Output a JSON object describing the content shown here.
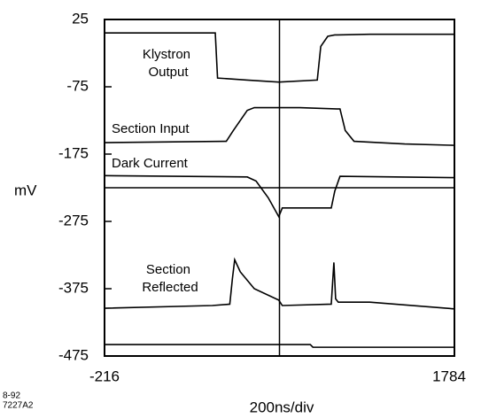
{
  "chart_data": {
    "type": "line",
    "ylabel": "mV",
    "xlabel": "200ns/div",
    "annotations": [
      "8-92",
      "7227A2"
    ],
    "xlim": [
      -216,
      1784
    ],
    "xticks": [
      -216,
      1784
    ],
    "ylim": [
      -475,
      25
    ],
    "yticks": [
      25,
      -75,
      -175,
      -275,
      -375,
      -475
    ],
    "crosshair": {
      "x": 784,
      "y": -225
    },
    "series": [
      {
        "name": "Klystron Output",
        "color": "#000000",
        "x": [
          -216,
          417,
          430,
          600,
          780,
          1000,
          1020,
          1060,
          1100,
          1300,
          1784
        ],
        "values": [
          5,
          5,
          -62,
          -65,
          -68,
          -65,
          -15,
          0,
          2,
          3,
          3
        ]
      },
      {
        "name": "Section Input",
        "color": "#000000",
        "x": [
          -216,
          480,
          520,
          600,
          640,
          900,
          1130,
          1160,
          1210,
          1500,
          1784
        ],
        "values": [
          -158,
          -156,
          -140,
          -110,
          -106,
          -106,
          -108,
          -140,
          -156,
          -160,
          -162
        ]
      },
      {
        "name": "Dark Current",
        "color": "#000000",
        "x": [
          -216,
          600,
          650,
          720,
          780,
          800,
          1080,
          1100,
          1130,
          1784
        ],
        "values": [
          -207,
          -209,
          -215,
          -240,
          -268,
          -255,
          -255,
          -230,
          -208,
          -210
        ]
      },
      {
        "name": "Section Reflected",
        "color": "#000000",
        "x": [
          -216,
          400,
          500,
          515,
          528,
          560,
          640,
          780,
          800,
          1080,
          1095,
          1105,
          1120,
          1300,
          1784
        ],
        "values": [
          -404,
          -400,
          -398,
          -360,
          -332,
          -350,
          -375,
          -392,
          -400,
          -398,
          -336,
          -390,
          -395,
          -395,
          -405
        ]
      },
      {
        "color": "#000000",
        "x": [
          -216,
          960,
          975,
          1784
        ],
        "values": [
          -458,
          -458,
          -462,
          -462
        ]
      }
    ]
  }
}
